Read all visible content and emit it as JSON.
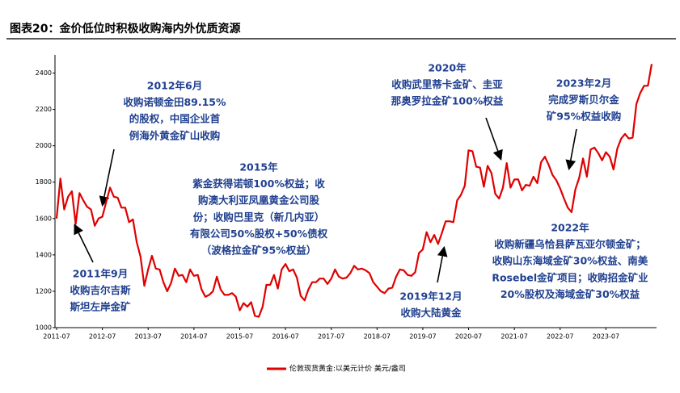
{
  "title": "图表20：金价低位时积极收购海内外优质资源",
  "chart_data": {
    "type": "line",
    "x": [
      "2011-07",
      "2011-08",
      "2011-09",
      "2011-10",
      "2011-11",
      "2011-12",
      "2012-01",
      "2012-02",
      "2012-03",
      "2012-04",
      "2012-05",
      "2012-06",
      "2012-07",
      "2012-08",
      "2012-09",
      "2012-10",
      "2012-11",
      "2012-12",
      "2013-01",
      "2013-02",
      "2013-03",
      "2013-04",
      "2013-05",
      "2013-06",
      "2013-07",
      "2013-08",
      "2013-09",
      "2013-10",
      "2013-11",
      "2013-12",
      "2014-01",
      "2014-02",
      "2014-03",
      "2014-04",
      "2014-05",
      "2014-06",
      "2014-07",
      "2014-08",
      "2014-09",
      "2014-10",
      "2014-11",
      "2014-12",
      "2015-01",
      "2015-02",
      "2015-03",
      "2015-04",
      "2015-05",
      "2015-06",
      "2015-07",
      "2015-08",
      "2015-09",
      "2015-10",
      "2015-11",
      "2015-12",
      "2016-01",
      "2016-02",
      "2016-03",
      "2016-04",
      "2016-05",
      "2016-06",
      "2016-07",
      "2016-08",
      "2016-09",
      "2016-10",
      "2016-11",
      "2016-12",
      "2017-01",
      "2017-02",
      "2017-03",
      "2017-04",
      "2017-05",
      "2017-06",
      "2017-07",
      "2017-08",
      "2017-09",
      "2017-10",
      "2017-11",
      "2017-12",
      "2018-01",
      "2018-02",
      "2018-03",
      "2018-04",
      "2018-05",
      "2018-06",
      "2018-07",
      "2018-08",
      "2018-09",
      "2018-10",
      "2018-11",
      "2018-12",
      "2019-01",
      "2019-02",
      "2019-03",
      "2019-04",
      "2019-05",
      "2019-06",
      "2019-07",
      "2019-08",
      "2019-09",
      "2019-10",
      "2019-11",
      "2019-12",
      "2020-01",
      "2020-02",
      "2020-03",
      "2020-04",
      "2020-05",
      "2020-06",
      "2020-07",
      "2020-08",
      "2020-09",
      "2020-10",
      "2020-11",
      "2020-12",
      "2021-01",
      "2021-02",
      "2021-03",
      "2021-04",
      "2021-05",
      "2021-06",
      "2021-07",
      "2021-08",
      "2021-09",
      "2021-10",
      "2021-11",
      "2021-12",
      "2022-01",
      "2022-02",
      "2022-03",
      "2022-04",
      "2022-05",
      "2022-06",
      "2022-07",
      "2022-08",
      "2022-09",
      "2022-10",
      "2022-11",
      "2022-12",
      "2023-01",
      "2023-02",
      "2023-03",
      "2023-04",
      "2023-05",
      "2023-06",
      "2023-07",
      "2023-08",
      "2023-09",
      "2023-10",
      "2023-11",
      "2023-12",
      "2024-01",
      "2024-02",
      "2024-03",
      "2024-04",
      "2024-05",
      "2024-06",
      "2024-07"
    ],
    "series": [
      {
        "name": "伦敦现货黄金:以美元计价 美元/盎司",
        "color": "#e00000",
        "values": [
          1600,
          1820,
          1650,
          1720,
          1750,
          1570,
          1740,
          1700,
          1665,
          1650,
          1560,
          1600,
          1610,
          1690,
          1770,
          1720,
          1715,
          1660,
          1660,
          1580,
          1595,
          1470,
          1390,
          1230,
          1320,
          1395,
          1325,
          1320,
          1250,
          1200,
          1245,
          1325,
          1285,
          1290,
          1250,
          1320,
          1285,
          1290,
          1210,
          1170,
          1180,
          1200,
          1280,
          1210,
          1180,
          1180,
          1190,
          1170,
          1095,
          1135,
          1115,
          1140,
          1065,
          1060,
          1115,
          1235,
          1235,
          1290,
          1215,
          1320,
          1350,
          1310,
          1320,
          1275,
          1175,
          1150,
          1210,
          1250,
          1250,
          1270,
          1270,
          1240,
          1270,
          1320,
          1280,
          1270,
          1275,
          1300,
          1340,
          1320,
          1325,
          1315,
          1300,
          1250,
          1225,
          1200,
          1190,
          1215,
          1220,
          1280,
          1320,
          1315,
          1290,
          1285,
          1305,
          1410,
          1430,
          1525,
          1470,
          1510,
          1460,
          1520,
          1585,
          1585,
          1580,
          1700,
          1730,
          1780,
          1975,
          1970,
          1885,
          1880,
          1775,
          1890,
          1850,
          1735,
          1710,
          1770,
          1905,
          1770,
          1815,
          1815,
          1755,
          1785,
          1780,
          1830,
          1795,
          1910,
          1940,
          1895,
          1840,
          1810,
          1765,
          1710,
          1660,
          1635,
          1760,
          1825,
          1930,
          1830,
          1980,
          1990,
          1960,
          1920,
          1965,
          1940,
          1870,
          1985,
          2040,
          2065,
          2040,
          2045,
          2230,
          2290,
          2330,
          2330,
          2450
        ]
      }
    ],
    "xticks": [
      "2011-07",
      "2012-07",
      "2013-07",
      "2014-07",
      "2015-07",
      "2016-07",
      "2017-07",
      "2018-07",
      "2019-07",
      "2020-07",
      "2021-07",
      "2022-07",
      "2023-07"
    ],
    "ylim": [
      1000,
      2500
    ],
    "yticks": [
      1000,
      1200,
      1400,
      1600,
      1800,
      2000,
      2200,
      2400
    ],
    "annotations": [
      [
        "2011年9月",
        "收购吉尔吉斯",
        "斯坦左岸金矿"
      ],
      [
        "2012年6月",
        "收购诺顿金田89.15%",
        "的股权，中国企业首",
        "例海外黄金矿山收购"
      ],
      [
        "2015年",
        "紫金获得诺顿100%权益；收",
        "购澳大利亚凤凰黄金公司股",
        "份；收购巴里克（新几内亚）",
        "有限公司50%股权+50%债权",
        "（波格拉金矿95%权益）"
      ],
      [
        "2019年12月",
        "收购大陆黄金"
      ],
      [
        "2020年",
        "收购武里蒂卡金矿、圭亚",
        "那奥罗拉金矿100%权益"
      ],
      [
        "2023年2月",
        "完成罗斯贝尔金",
        "矿95%权益收购"
      ],
      [
        "2022年",
        "收购新疆乌恰县萨瓦亚尔顿金矿；",
        "收购山东海域金矿30%权益、南美",
        "Rosebel金矿项目；收购招金矿业",
        "20%股权及海域金矿30%权益"
      ]
    ]
  }
}
